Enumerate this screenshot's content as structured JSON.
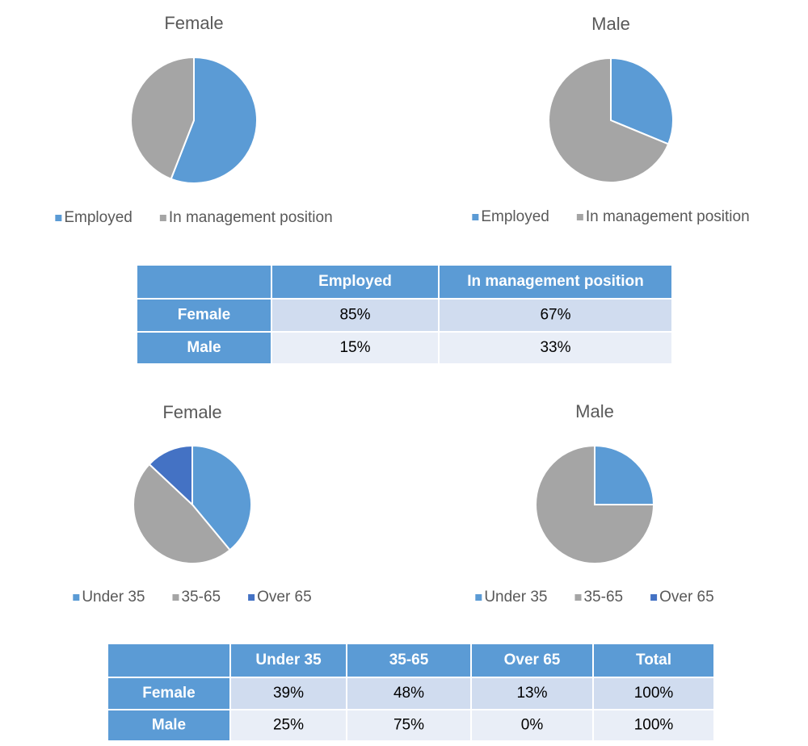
{
  "chart_data": [
    {
      "type": "pie",
      "title": "Female",
      "categories": [
        "Employed",
        "In management position"
      ],
      "values": [
        85,
        67
      ],
      "colors": [
        "#5b9bd5",
        "#a5a5a5"
      ]
    },
    {
      "type": "pie",
      "title": "Male",
      "categories": [
        "Employed",
        "In management position"
      ],
      "values": [
        15,
        33
      ],
      "colors": [
        "#5b9bd5",
        "#a5a5a5"
      ]
    },
    {
      "type": "pie",
      "title": "Female",
      "categories": [
        "Under 35",
        "35-65",
        "Over 65"
      ],
      "values": [
        39,
        48,
        13
      ],
      "colors": [
        "#5b9bd5",
        "#a5a5a5",
        "#4472c4"
      ]
    },
    {
      "type": "pie",
      "title": "Male",
      "categories": [
        "Under 35",
        "35-65",
        "Over 65"
      ],
      "values": [
        25,
        75,
        0
      ],
      "colors": [
        "#5b9bd5",
        "#a5a5a5",
        "#4472c4"
      ]
    }
  ],
  "tables": [
    {
      "header": [
        "Employed",
        "In management position"
      ],
      "rows": [
        {
          "label": "Female",
          "cells": [
            "85%",
            "67%"
          ]
        },
        {
          "label": "Male",
          "cells": [
            "15%",
            "33%"
          ]
        }
      ]
    },
    {
      "header": [
        "Under 35",
        "35-65",
        "Over 65",
        "Total"
      ],
      "rows": [
        {
          "label": "Female",
          "cells": [
            "39%",
            "48%",
            "13%",
            "100%"
          ]
        },
        {
          "label": "Male",
          "cells": [
            "25%",
            "75%",
            "0%",
            "100%"
          ]
        }
      ]
    }
  ]
}
